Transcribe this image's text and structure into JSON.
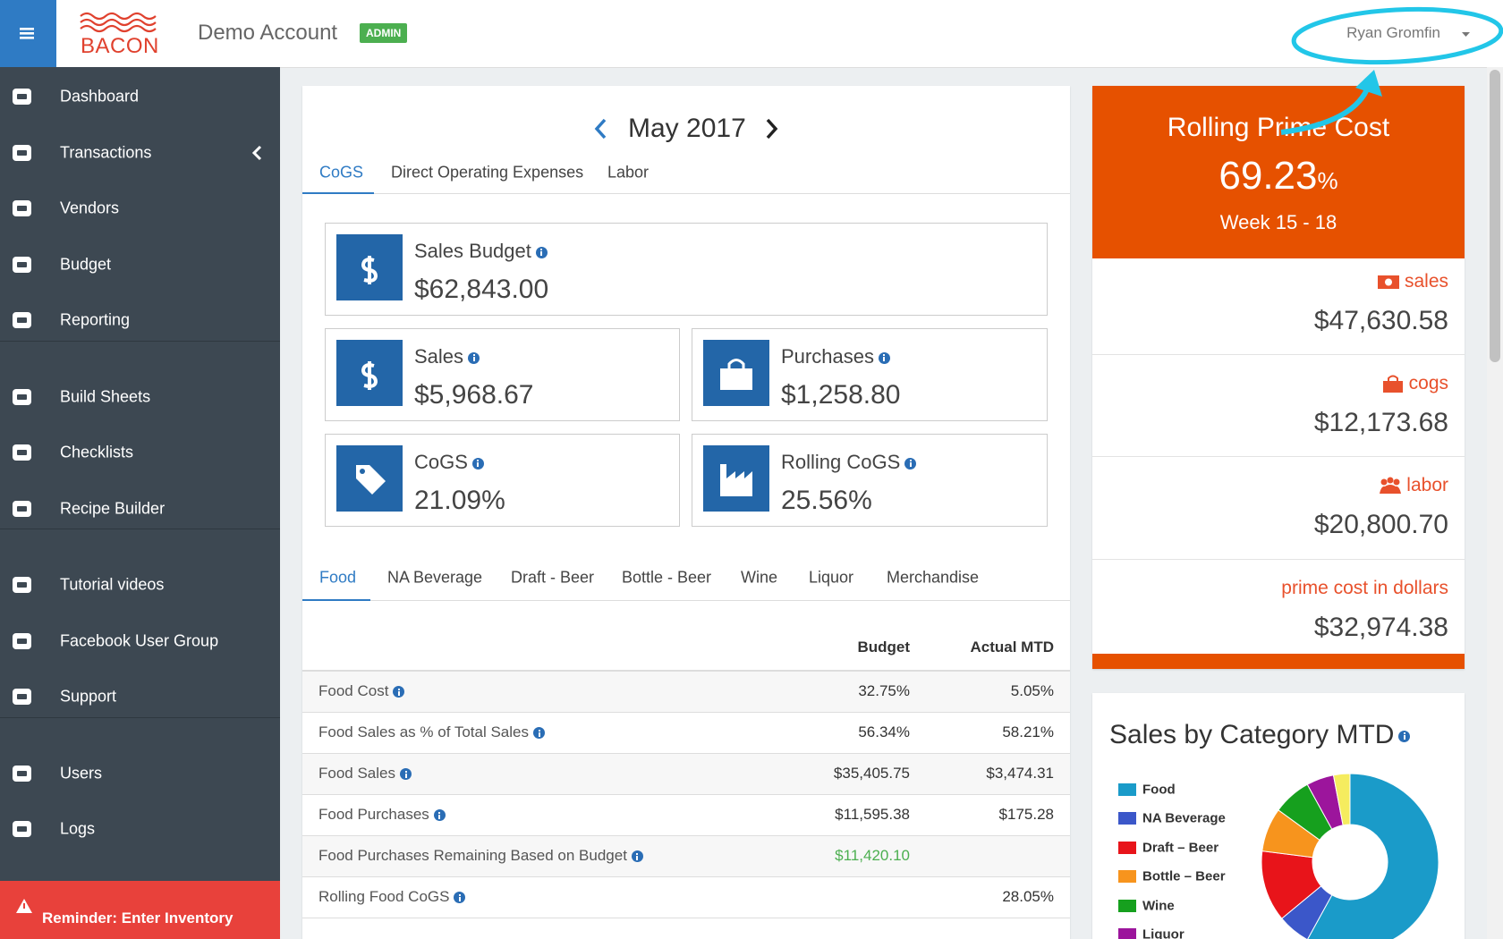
{
  "header": {
    "brand": "BACON",
    "account": "Demo Account",
    "badge": "ADMIN",
    "user": "Ryan Gromfin"
  },
  "sidebar": {
    "groups": [
      [
        "Dashboard",
        "Transactions",
        "Vendors",
        "Budget",
        "Reporting"
      ],
      [
        "Build Sheets",
        "Checklists",
        "Recipe Builder"
      ],
      [
        "Tutorial videos",
        "Facebook User Group",
        "Support"
      ],
      [
        "Users",
        "Logs"
      ]
    ],
    "reminder": "Reminder: Enter Inventory"
  },
  "main": {
    "month": "May 2017",
    "tabs": [
      "CoGS",
      "Direct Operating Expenses",
      "Labor"
    ],
    "stats": [
      {
        "label": "Sales Budget",
        "value": "$62,843.00"
      },
      {
        "label": "Sales",
        "value": "$5,968.67"
      },
      {
        "label": "Purchases",
        "value": "$1,258.80"
      },
      {
        "label": "CoGS",
        "value": "21.09%"
      },
      {
        "label": "Rolling CoGS",
        "value": "25.56%"
      }
    ],
    "category_tabs": [
      "Food",
      "NA Beverage",
      "Draft - Beer",
      "Bottle - Beer",
      "Wine",
      "Liquor",
      "Merchandise"
    ],
    "table": {
      "columns": [
        "Budget",
        "Actual MTD"
      ],
      "rows": [
        [
          "Food Cost",
          "32.75%",
          "5.05%"
        ],
        [
          "Food Sales as % of Total Sales",
          "56.34%",
          "58.21%"
        ],
        [
          "Food Sales",
          "$35,405.75",
          "$3,474.31"
        ],
        [
          "Food Purchases",
          "$11,595.38",
          "$175.28"
        ],
        [
          "Food Purchases Remaining Based on Budget",
          "$11,420.10",
          null
        ],
        [
          "Rolling Food CoGS",
          null,
          "28.05%"
        ]
      ]
    }
  },
  "prime_cost": {
    "title": "Rolling Prime Cost",
    "value": "69.23",
    "unit": "%",
    "period": "Week 15 - 18",
    "items": [
      {
        "label": "sales",
        "value": "$47,630.58"
      },
      {
        "label": "cogs",
        "value": "$12,173.68"
      },
      {
        "label": "labor",
        "value": "$20,800.70"
      },
      {
        "label": "prime cost in dollars",
        "value": "$32,974.38"
      }
    ]
  },
  "chart_data": {
    "type": "donut",
    "title": "Sales by Category MTD",
    "categories": [
      "Food",
      "NA Beverage",
      "Draft – Beer",
      "Bottle – Beer",
      "Wine",
      "Liquor",
      null
    ],
    "values": [
      58,
      6,
      13,
      8,
      7,
      5,
      3
    ],
    "colors": [
      "#1a9bc9",
      "#3b57c9",
      "#e8141a",
      "#f7941d",
      "#16a01e",
      "#9c159c",
      "#f5ec5e"
    ]
  }
}
